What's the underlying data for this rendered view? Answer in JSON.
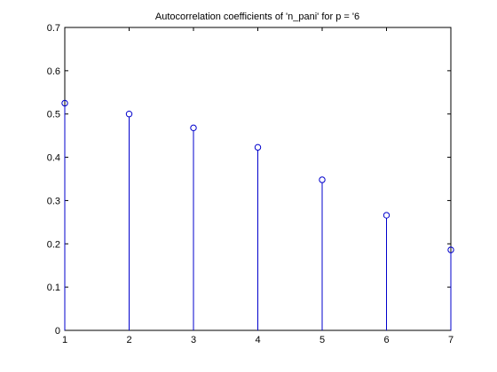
{
  "chart_data": {
    "type": "stem",
    "title": "Autocorrelation coefficients of 'n_pani' for p = '6",
    "xlabel": "",
    "ylabel": "",
    "x": [
      1,
      2,
      3,
      4,
      5,
      6,
      7
    ],
    "values": [
      0.525,
      0.5,
      0.468,
      0.423,
      0.348,
      0.266,
      0.186
    ],
    "xlim": [
      1,
      7
    ],
    "ylim": [
      0,
      0.7
    ],
    "xticks": [
      "1",
      "2",
      "3",
      "4",
      "5",
      "6",
      "7"
    ],
    "yticks": [
      "0",
      "0.1",
      "0.2",
      "0.3",
      "0.4",
      "0.5",
      "0.6",
      "0.7"
    ],
    "grid": false,
    "colors": {
      "stem": "#0000cc",
      "axes": "#000000",
      "background": "#ffffff"
    }
  }
}
